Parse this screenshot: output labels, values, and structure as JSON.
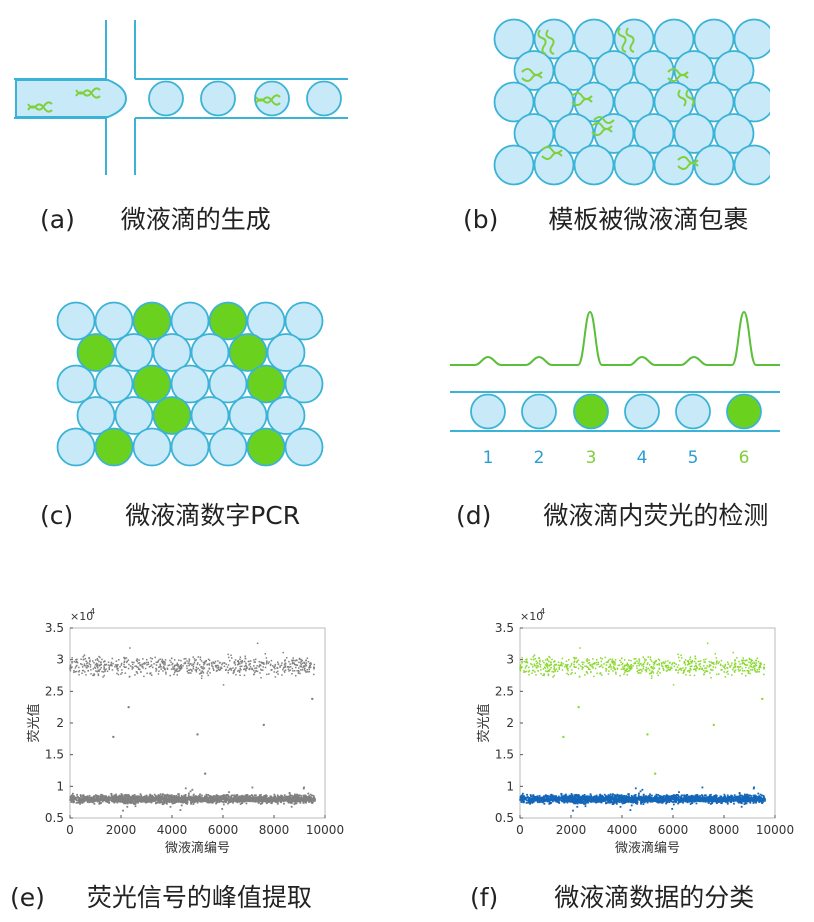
{
  "colors": {
    "channel_stroke": "#3bb3d6",
    "droplet_fill": "#c8e9f7",
    "positive_fill": "#6ad21f",
    "dna": "#7fd03b",
    "trace_green": "#5bbf3a",
    "label_blue": "#2a9fd0",
    "label_green": "#7fd03b",
    "scatter_gray": "#808080",
    "scatter_green": "#8ad830",
    "scatter_blue": "#1466b8"
  },
  "captions": {
    "a": {
      "letter": "(a)",
      "text": "微液滴的生成"
    },
    "b": {
      "letter": "(b)",
      "text": "模板被微液滴包裹"
    },
    "c": {
      "letter": "(c)",
      "text": "微液滴数字PCR"
    },
    "d": {
      "letter": "(d)",
      "text": "微液滴内荧光的检测"
    },
    "e": {
      "letter": "(e)",
      "text": "荧光信号的峰值提取"
    },
    "f": {
      "letter": "(f)",
      "text": "微液滴数据的分类"
    }
  },
  "panel_d": {
    "droplet_numbers": [
      "1",
      "2",
      "3",
      "4",
      "5",
      "6"
    ]
  },
  "chart_data": [
    {
      "type": "scatter",
      "panel": "e",
      "ylabel": "荧光值",
      "xlabel": "微液滴编号",
      "y_multiplier": "×10",
      "y_exponent": "4",
      "xlim": [
        0,
        10000
      ],
      "ylim": [
        0.5,
        3.5
      ],
      "xticks": [
        "0",
        "2000",
        "4000",
        "6000",
        "8000",
        "10000"
      ],
      "yticks": [
        "0.5",
        "1",
        "1.5",
        "2",
        "2.5",
        "3",
        "3.5"
      ],
      "series": [
        {
          "color": "#808080",
          "clusters": [
            {
              "x_range": [
                0,
                9600
              ],
              "y_center": 2.9,
              "y_spread": 0.1
            },
            {
              "x_range": [
                0,
                9600
              ],
              "y_center": 0.8,
              "y_spread": 0.05
            }
          ],
          "outliers": [
            [
              2300,
              2.25
            ],
            [
              1700,
              1.78
            ],
            [
              5000,
              1.82
            ],
            [
              7600,
              1.97
            ],
            [
              5300,
              1.2
            ],
            [
              9500,
              2.38
            ]
          ]
        }
      ]
    },
    {
      "type": "scatter",
      "panel": "f",
      "ylabel": "荧光值",
      "xlabel": "微液滴编号",
      "y_multiplier": "×10",
      "y_exponent": "4",
      "xlim": [
        0,
        10000
      ],
      "ylim": [
        0.5,
        3.5
      ],
      "xticks": [
        "0",
        "2000",
        "4000",
        "6000",
        "8000",
        "10000"
      ],
      "yticks": [
        "0.5",
        "1",
        "1.5",
        "2",
        "2.5",
        "3",
        "3.5"
      ],
      "series": [
        {
          "color": "#8ad830",
          "clusters": [
            {
              "x_range": [
                0,
                9600
              ],
              "y_center": 2.9,
              "y_spread": 0.1
            }
          ],
          "outliers": [
            [
              2300,
              2.25
            ],
            [
              1700,
              1.78
            ],
            [
              5000,
              1.82
            ],
            [
              7600,
              1.97
            ],
            [
              5300,
              1.2
            ],
            [
              9500,
              2.38
            ]
          ]
        },
        {
          "color": "#1466b8",
          "clusters": [
            {
              "x_range": [
                0,
                9600
              ],
              "y_center": 0.8,
              "y_spread": 0.05
            }
          ],
          "outliers": []
        }
      ]
    }
  ]
}
